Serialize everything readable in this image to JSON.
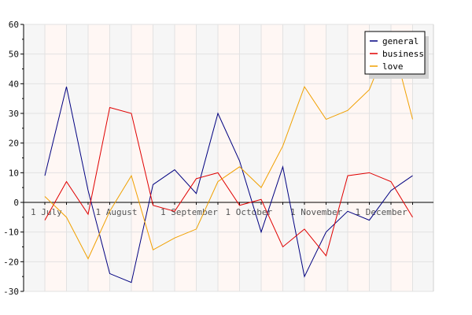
{
  "chart_data": {
    "type": "line",
    "title": "",
    "xlabel": "",
    "ylabel": "",
    "ylim": [
      -30,
      60
    ],
    "yticks": [
      -30,
      -20,
      -10,
      0,
      10,
      20,
      30,
      40,
      50,
      60
    ],
    "grid": true,
    "legend_position": "top-right",
    "x_labels": [
      {
        "label": "1 July",
        "index": 0
      },
      {
        "label": "1 August",
        "index": 3
      },
      {
        "label": "1 September",
        "index": 6
      },
      {
        "label": "1 October",
        "index": 9
      },
      {
        "label": "1 November",
        "index": 12
      },
      {
        "label": "1 December",
        "index": 15
      }
    ],
    "n_points": 18,
    "series": [
      {
        "name": "general",
        "color": "#000080",
        "values": [
          9,
          39,
          4,
          -24,
          -27,
          6,
          11,
          3,
          30,
          14,
          -10,
          12,
          -25,
          -10,
          -3,
          -6,
          4,
          9
        ]
      },
      {
        "name": "business",
        "color": "#e00000",
        "values": [
          -6,
          7,
          -4,
          32,
          30,
          -1,
          -3,
          8,
          10,
          -1,
          1,
          -15,
          -9,
          -18,
          9,
          10,
          7,
          -5
        ]
      },
      {
        "name": "love",
        "color": "#f0a000",
        "values": [
          2,
          -5,
          -19,
          -3,
          9,
          -16,
          -12,
          -9,
          7,
          12,
          5,
          19,
          39,
          28,
          31,
          38,
          56,
          28
        ]
      }
    ]
  }
}
